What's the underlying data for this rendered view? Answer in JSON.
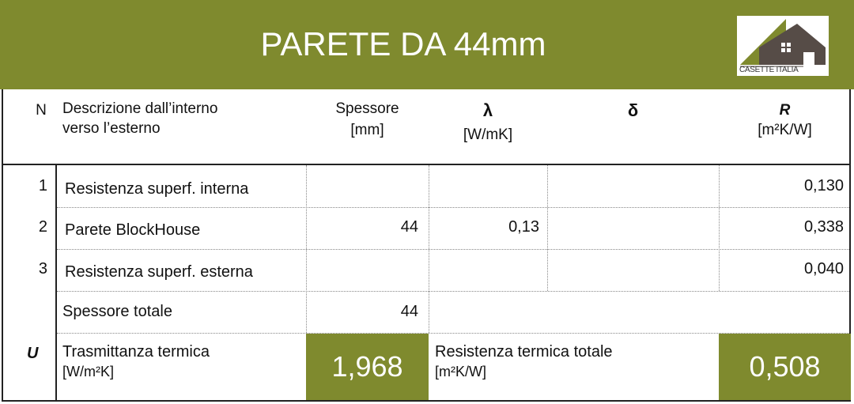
{
  "title": "PARETE DA 44mm",
  "logo_text": "CASETTE ITALIA",
  "brand_color": "#7f8a2e",
  "headers": {
    "n": "N",
    "desc_line1": "Descrizione dall’interno",
    "desc_line2": "verso l’esterno",
    "spessore_line1": "Spessore",
    "spessore_line2": "[mm]",
    "lambda": "λ",
    "lambda_unit": "[W/mK]",
    "delta": "δ",
    "r": "R",
    "r_unit": "[m²K/W]"
  },
  "rows": [
    {
      "n": "1",
      "desc": "Resistenza superf. interna",
      "spessore": "",
      "lambda": "",
      "delta": "",
      "r": "0,130"
    },
    {
      "n": "2",
      "desc": "Parete BlockHouse",
      "spessore": "44",
      "lambda": "0,13",
      "delta": "",
      "r": "0,338"
    },
    {
      "n": "3",
      "desc": "Resistenza superf. esterna",
      "spessore": "",
      "lambda": "",
      "delta": "",
      "r": "0,040"
    }
  ],
  "totale": {
    "label": "Spessore totale",
    "value": "44"
  },
  "summary": {
    "u_symbol": "U",
    "trasm_line1": "Trasmittanza termica",
    "trasm_line2": "[W/m²K]",
    "trasm_value": "1,968",
    "res_line1": "Resistenza termica totale",
    "res_line2": "[m²K/W]",
    "res_value": "0,508"
  }
}
